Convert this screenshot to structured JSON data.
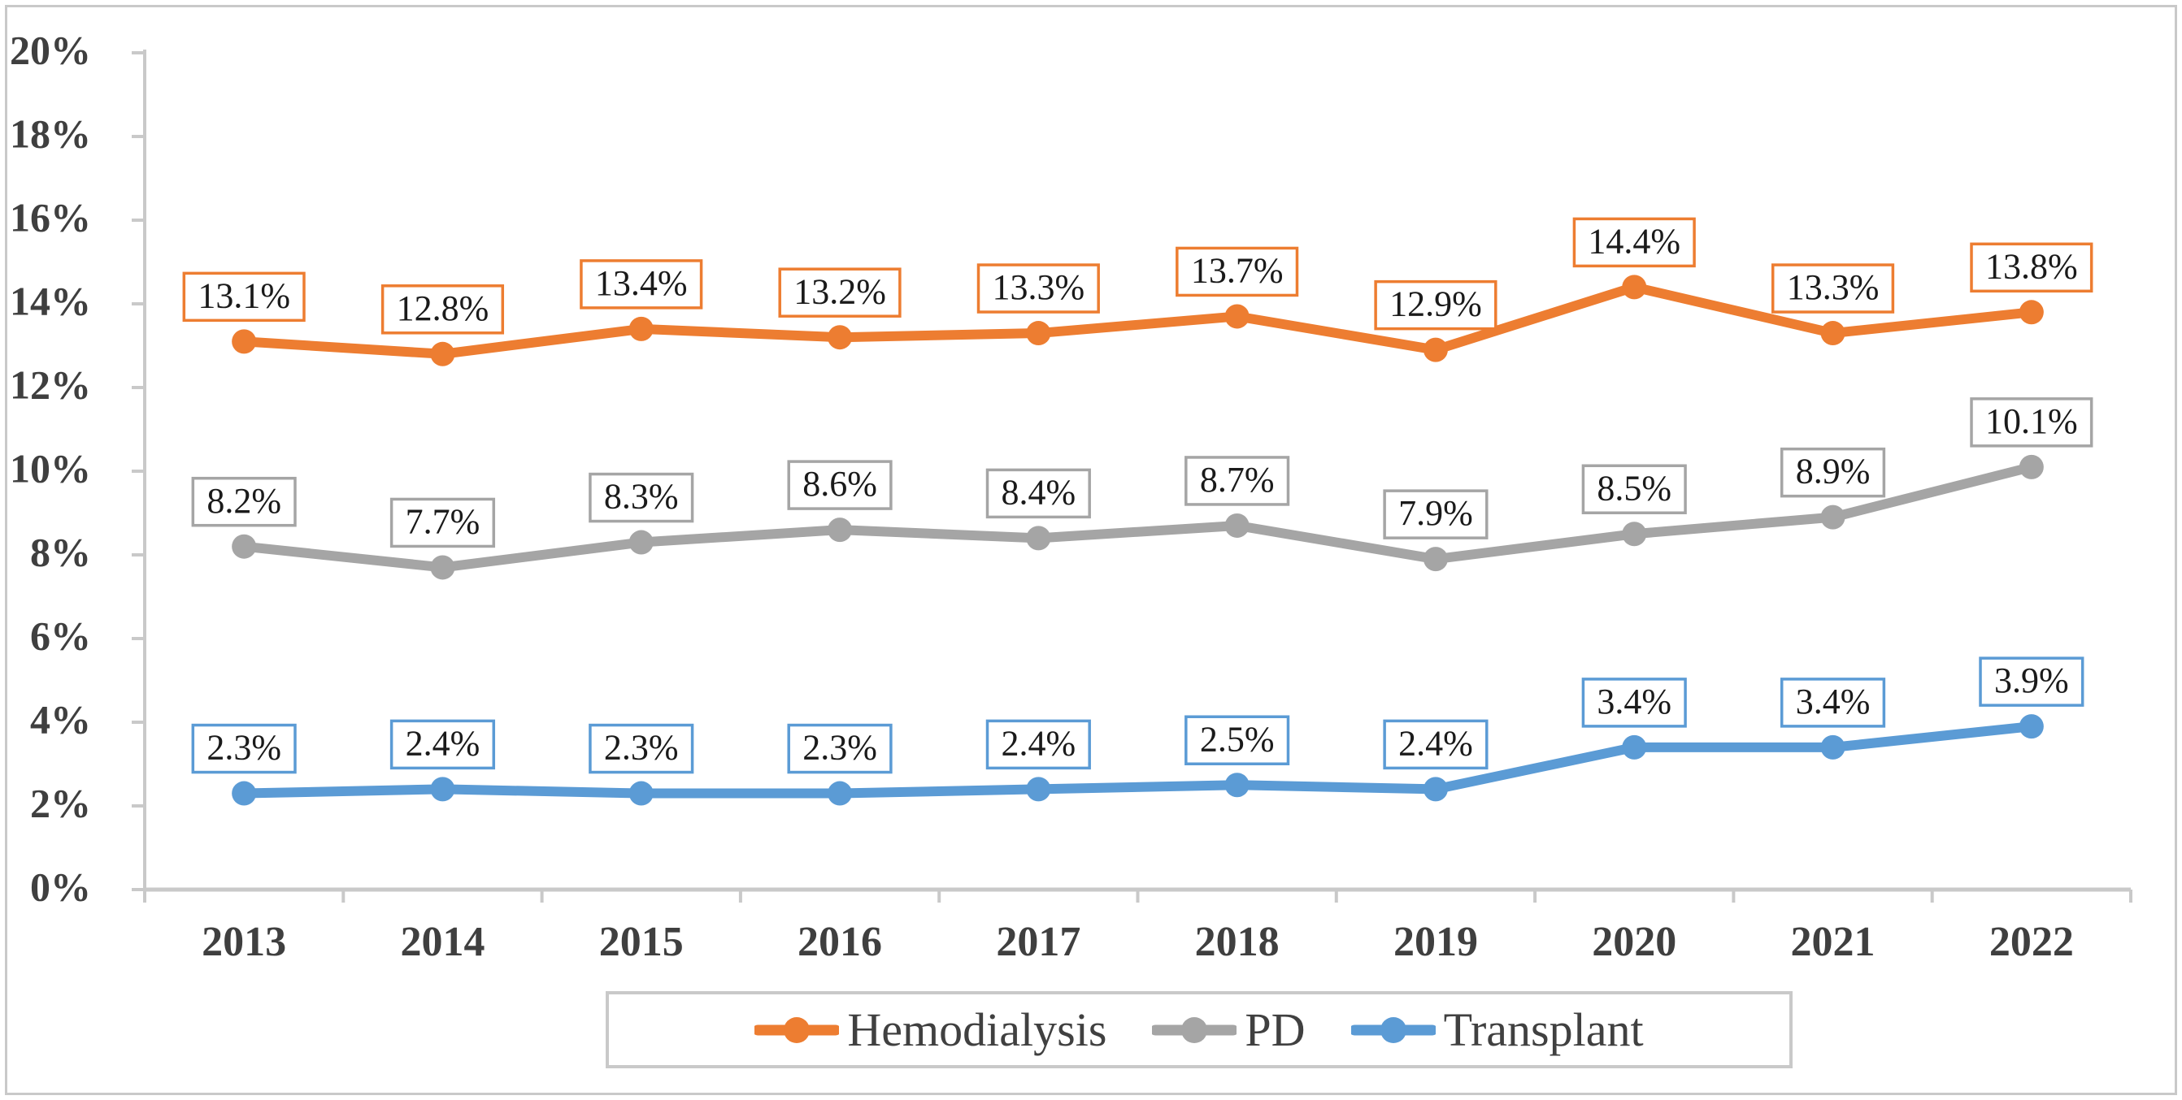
{
  "chart_data": {
    "type": "line",
    "title": "",
    "xlabel": "",
    "ylabel": "",
    "categories": [
      "2013",
      "2014",
      "2015",
      "2016",
      "2017",
      "2018",
      "2019",
      "2020",
      "2021",
      "2022"
    ],
    "series": [
      {
        "name": "Hemodialysis",
        "color": "#ED7D31",
        "values": [
          13.1,
          12.8,
          13.4,
          13.2,
          13.3,
          13.7,
          12.9,
          14.4,
          13.3,
          13.8
        ],
        "labels": [
          "13.1%",
          "12.8%",
          "13.4%",
          "13.2%",
          "13.3%",
          "13.7%",
          "12.9%",
          "14.4%",
          "13.3%",
          "13.8%"
        ]
      },
      {
        "name": "PD",
        "color": "#A5A5A5",
        "values": [
          8.2,
          7.7,
          8.3,
          8.6,
          8.4,
          8.7,
          7.9,
          8.5,
          8.9,
          10.1
        ],
        "labels": [
          "8.2%",
          "7.7%",
          "8.3%",
          "8.6%",
          "8.4%",
          "8.7%",
          "7.9%",
          "8.5%",
          "8.9%",
          "10.1%"
        ]
      },
      {
        "name": "Transplant",
        "color": "#5B9BD5",
        "values": [
          2.3,
          2.4,
          2.3,
          2.3,
          2.4,
          2.5,
          2.4,
          3.4,
          3.4,
          3.9
        ],
        "labels": [
          "2.3%",
          "2.4%",
          "2.3%",
          "2.3%",
          "2.4%",
          "2.5%",
          "2.4%",
          "3.4%",
          "3.4%",
          "3.9%"
        ]
      }
    ],
    "ylim": [
      0,
      20
    ],
    "ystep": 2,
    "ytick_labels": [
      "0%",
      "2%",
      "4%",
      "6%",
      "8%",
      "10%",
      "12%",
      "14%",
      "16%",
      "18%",
      "20%"
    ],
    "ytick_suffix": "%",
    "grid": false,
    "legend_position": "bottom",
    "data_labels": "boxed, one decimal + %",
    "marker": "circle",
    "colors": {
      "axis": "#c9c9c9",
      "axis_text": "#3f3f3f",
      "data_label_text": "#1a1a1a",
      "label_box_fill": "#ffffff",
      "page_border": "#c9c9c9",
      "legend_border": "#c9c9c9",
      "legend_text": "#404040"
    }
  }
}
